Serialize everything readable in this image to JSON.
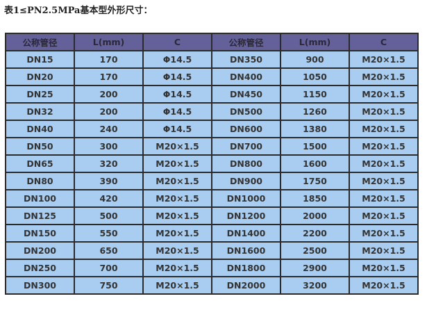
{
  "title": "表1≤PN2.5MPa基本型外形尺寸：",
  "headers": [
    "公称管径",
    "L(mm)",
    "C",
    "公称管径",
    "L(mm)",
    "C"
  ],
  "rows": [
    [
      "DN15",
      "170",
      "Φ14.5",
      "DN350",
      "900",
      "M20×1.5"
    ],
    [
      "DN20",
      "170",
      "Φ14.5",
      "DN400",
      "1050",
      "M20×1.5"
    ],
    [
      "DN25",
      "200",
      "Φ14.5",
      "DN450",
      "1150",
      "M20×1.5"
    ],
    [
      "DN32",
      "200",
      "Φ14.5",
      "DN500",
      "1260",
      "M20×1.5"
    ],
    [
      "DN40",
      "240",
      "Φ14.5",
      "DN600",
      "1380",
      "M20×1.5"
    ],
    [
      "DN50",
      "300",
      "M20×1.5",
      "DN700",
      "1500",
      "M20×1.5"
    ],
    [
      "DN65",
      "320",
      "M20×1.5",
      "DN800",
      "1600",
      "M20×1.5"
    ],
    [
      "DN80",
      "390",
      "M20×1.5",
      "DN900",
      "1750",
      "M20×1.5"
    ],
    [
      "DN100",
      "420",
      "M20×1.5",
      "DN1000",
      "1850",
      "M20×1.5"
    ],
    [
      "DN125",
      "500",
      "M20×1.5",
      "DN1200",
      "2000",
      "M20×1.5"
    ],
    [
      "DN150",
      "550",
      "M20×1.5",
      "DN1400",
      "2200",
      "M20×1.5"
    ],
    [
      "DN200",
      "650",
      "M20×1.5",
      "DN1600",
      "2500",
      "M20×1.5"
    ],
    [
      "DN250",
      "700",
      "M20×1.5",
      "DN1800",
      "2900",
      "M20×1.5"
    ],
    [
      "DN300",
      "750",
      "M20×1.5",
      "DN2000",
      "3200",
      "M20×1.5"
    ]
  ],
  "colors": {
    "header_bg": "#64609a",
    "cell_bg": "#a9cdf0",
    "border": "#2b2b2b"
  }
}
